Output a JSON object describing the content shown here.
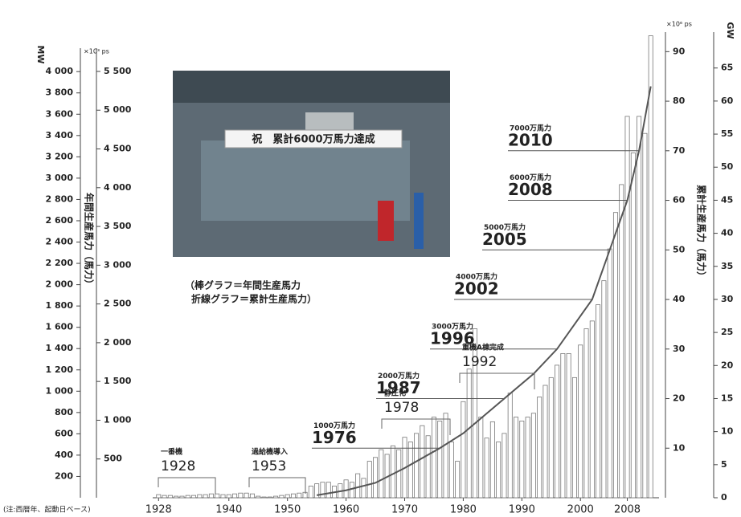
{
  "chart_data": {
    "type": "bar",
    "note": "(注:西暦年、起動日ベース)",
    "legend_lines": [
      "（棒グラフ＝年間生産馬力",
      "折線グラフ＝累計生産馬力）"
    ],
    "photo_banner": "祝　累計6000万馬力達成",
    "y_unit": "×10³ ps",
    "y_title": "年間生産馬力（馬力）",
    "y2_unit": "×10⁶ ps",
    "y2_title": "累計生産馬力（馬力）",
    "x": [
      1928,
      1929,
      1930,
      1931,
      1932,
      1933,
      1934,
      1935,
      1936,
      1937,
      1938,
      1939,
      1940,
      1941,
      1942,
      1943,
      1944,
      1945,
      1946,
      1947,
      1948,
      1949,
      1950,
      1951,
      1952,
      1953,
      1954,
      1955,
      1956,
      1957,
      1958,
      1959,
      1960,
      1961,
      1962,
      1963,
      1964,
      1965,
      1966,
      1967,
      1968,
      1969,
      1970,
      1971,
      1972,
      1973,
      1974,
      1975,
      1976,
      1977,
      1978,
      1979,
      1980,
      1981,
      1982,
      1983,
      1984,
      1985,
      1986,
      1987,
      1988,
      1989,
      1990,
      1991,
      1992,
      1993,
      1994,
      1995,
      1996,
      1997,
      1998,
      1999,
      2000,
      2001,
      2002,
      2003,
      2004,
      2005,
      2006,
      2007,
      2008,
      2009,
      2010,
      2011,
      2012
    ],
    "xlim": [
      1927,
      2013
    ],
    "xticks": [
      1928,
      1940,
      1950,
      1960,
      1970,
      1980,
      1990,
      2000,
      2008
    ],
    "series": [
      {
        "name": "年間生産馬力",
        "color": "#777777",
        "values": [
          40,
          30,
          30,
          20,
          20,
          30,
          30,
          40,
          40,
          50,
          50,
          40,
          40,
          50,
          60,
          60,
          50,
          20,
          10,
          10,
          20,
          30,
          40,
          50,
          60,
          70,
          150,
          180,
          200,
          200,
          150,
          180,
          230,
          200,
          310,
          250,
          470,
          520,
          620,
          560,
          670,
          620,
          780,
          720,
          830,
          930,
          800,
          1040,
          990,
          1090,
          720,
          470,
          1240,
          1660,
          2180,
          1040,
          770,
          980,
          720,
          830,
          1350,
          1040,
          990,
          1040,
          1090,
          1300,
          1450,
          1550,
          1710,
          1860,
          1860,
          1550,
          1970,
          2180,
          2280,
          2490,
          2800,
          3210,
          3680,
          4040,
          4920,
          4450,
          4920,
          4700,
          5960
        ]
      },
      {
        "name": "累計生産馬力",
        "color": "#555555",
        "axis": "y2",
        "type": "line",
        "x": [
          1955,
          1960,
          1965,
          1970,
          1976,
          1980,
          1987,
          1992,
          1996,
          2002,
          2005,
          2008,
          2010,
          2012
        ],
        "values": [
          0.5,
          1.5,
          3,
          6,
          10,
          13,
          20,
          25,
          30,
          40,
          50,
          60,
          70,
          83
        ]
      }
    ],
    "ylim": [
      0,
      5800
    ],
    "yticks": [
      500,
      {
        "value": 1000,
        "label": "1 000"
      },
      {
        "value": 1500,
        "label": "1 500"
      },
      {
        "value": 2000,
        "label": "2 000"
      },
      {
        "value": 2500,
        "label": "2 500"
      },
      {
        "value": 3000,
        "label": "3 000"
      },
      {
        "value": 3500,
        "label": "3 500"
      },
      {
        "value": 4000,
        "label": "4 000"
      },
      {
        "value": 4500,
        "label": "4 500"
      },
      {
        "value": 5000,
        "label": "5 000"
      },
      {
        "value": 5500,
        "label": "5 500"
      }
    ],
    "y2lim": [
      0,
      90.7
    ],
    "y2ticks": [
      10,
      20,
      30,
      40,
      50,
      60,
      70,
      80,
      90
    ],
    "mw_axis": {
      "unit": "MW",
      "ylim": [
        0,
        4220
      ],
      "yticks": [
        200,
        400,
        600,
        800,
        {
          "value": 1000,
          "label": "1 000"
        },
        {
          "value": 1200,
          "label": "1 200"
        },
        {
          "value": 1400,
          "label": "1 400"
        },
        {
          "value": 1600,
          "label": "1 600"
        },
        {
          "value": 1800,
          "label": "1 800"
        },
        {
          "value": 2000,
          "label": "2 000"
        },
        {
          "value": 2200,
          "label": "2 200"
        },
        {
          "value": 2400,
          "label": "2 400"
        },
        {
          "value": 2600,
          "label": "2 600"
        },
        {
          "value": 2800,
          "label": "2 800"
        },
        {
          "value": 3000,
          "label": "3 000"
        },
        {
          "value": 3200,
          "label": "3 200"
        },
        {
          "value": 3400,
          "label": "3 400"
        },
        {
          "value": 3600,
          "label": "3 600"
        },
        {
          "value": 3800,
          "label": "3 800"
        },
        {
          "value": 4000,
          "label": "4 000"
        }
      ]
    },
    "gw_axis": {
      "unit": "GW",
      "ylim": [
        0,
        68
      ],
      "yticks": [
        0,
        5,
        10,
        15,
        20,
        25,
        30,
        35,
        40,
        45,
        50,
        55,
        60,
        65
      ]
    },
    "milestones": [
      {
        "label": "1000万馬力",
        "year": 1976,
        "value": 10
      },
      {
        "label": "2000万馬力",
        "year": 1987,
        "value": 20
      },
      {
        "label": "3000万馬力",
        "year": 1996,
        "value": 30
      },
      {
        "label": "4000万馬力",
        "year": 2002,
        "value": 40
      },
      {
        "label": "5000万馬力",
        "year": 2005,
        "value": 50
      },
      {
        "label": "6000万馬力",
        "year": 2008,
        "value": 60
      },
      {
        "label": "7000万馬力",
        "year": 2010,
        "value": 70
      }
    ],
    "events": [
      {
        "label": "一番機",
        "year": 1928
      },
      {
        "label": "過給機導入",
        "year": 1953
      },
      {
        "label": "静圧化",
        "year": 1978
      },
      {
        "label": "重機A棟完成",
        "year": 1992
      }
    ]
  }
}
